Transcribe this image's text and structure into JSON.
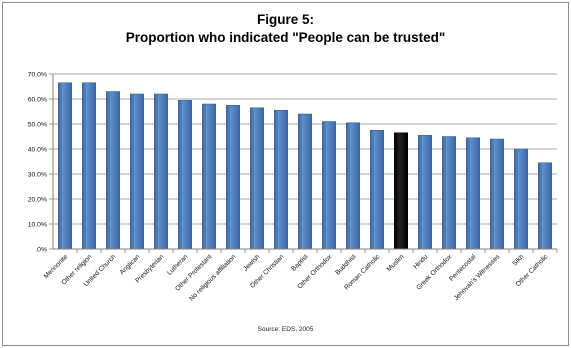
{
  "chart_data": {
    "type": "bar",
    "title": "Figure 5:",
    "subtitle": "Proportion who indicated \"People can be trusted\"",
    "source": "Source: EDS, 2005",
    "categories": [
      "Mennonite",
      "Other religion",
      "United Church",
      "Anglican",
      "Presbyterian",
      "Lutheran",
      "Other Protestant",
      "No religious affiliation",
      "Jewish",
      "Other Christian",
      "Baptist",
      "Other Orthodox",
      "Buddhist",
      "Roman Catholic",
      "Muslim",
      "Hindu",
      "Greek Orthodox",
      "Pentecostal",
      "Jehovah's Witnesses",
      "Sikh",
      "Other Catholic"
    ],
    "values": [
      66.5,
      66.5,
      63.0,
      62.0,
      62.0,
      59.5,
      58.0,
      57.5,
      56.5,
      55.5,
      54.0,
      51.0,
      50.5,
      47.5,
      46.5,
      45.5,
      45.0,
      44.5,
      44.0,
      40.0,
      34.5
    ],
    "highlight_category": "Muslim",
    "colors": {
      "bar": "#4a7ebb",
      "highlight": "#000000",
      "gridline": "#8e8e8e"
    },
    "ylim": [
      0,
      70
    ],
    "yticks": [
      ".0%",
      "10.0%",
      "20.0%",
      "30.0%",
      "40.0%",
      "50.0%",
      "60.0%",
      "70.0%"
    ],
    "grid": true,
    "legend": "none"
  }
}
